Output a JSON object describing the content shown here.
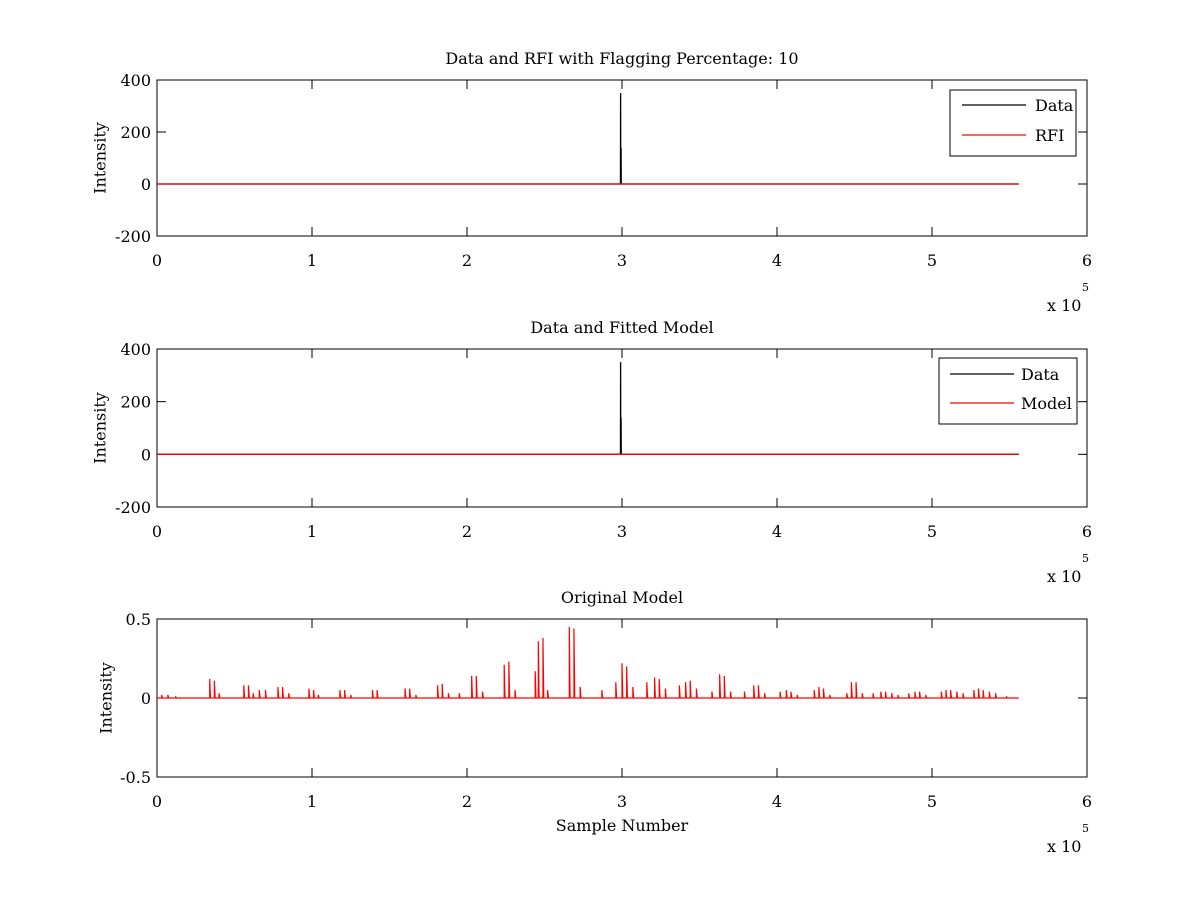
{
  "chart_data": [
    {
      "type": "line",
      "title": "Data and RFI with Flagging Percentage: 10",
      "xlabel": "",
      "ylabel": "Intensity",
      "xlim": [
        0,
        600000
      ],
      "ylim": [
        -200,
        400
      ],
      "x_ticks": [
        0,
        1,
        2,
        3,
        4,
        5,
        6
      ],
      "y_ticks": [
        -200,
        0,
        200,
        400
      ],
      "x_exponent": "x 10",
      "x_exponent_power": "5",
      "legend": "top-right",
      "series": [
        {
          "name": "Data",
          "color": "#000000",
          "x": [
            0,
            299000,
            299100,
            299200,
            299300,
            299400,
            299500,
            299600,
            556000
          ],
          "y": [
            0,
            0,
            350,
            0,
            0,
            140,
            0,
            0,
            0
          ]
        },
        {
          "name": "RFI",
          "color": "#ff0000",
          "x": [
            0,
            556000
          ],
          "y": [
            0,
            0
          ]
        }
      ]
    },
    {
      "type": "line",
      "title": "Data and Fitted Model",
      "xlabel": "",
      "ylabel": "Intensity",
      "xlim": [
        0,
        600000
      ],
      "ylim": [
        -200,
        400
      ],
      "x_ticks": [
        0,
        1,
        2,
        3,
        4,
        5,
        6
      ],
      "y_ticks": [
        -200,
        0,
        200,
        400
      ],
      "x_exponent": "x 10",
      "x_exponent_power": "5",
      "legend": "top-right",
      "series": [
        {
          "name": "Data",
          "color": "#000000",
          "x": [
            0,
            299000,
            299100,
            299200,
            299300,
            299400,
            299500,
            299600,
            556000
          ],
          "y": [
            0,
            0,
            350,
            0,
            0,
            140,
            0,
            0,
            0
          ]
        },
        {
          "name": "Model",
          "color": "#ff0000",
          "x": [
            0,
            556000
          ],
          "y": [
            0,
            0
          ]
        }
      ]
    },
    {
      "type": "line",
      "title": "Original Model",
      "xlabel": "Sample Number",
      "ylabel": "Intensity",
      "xlim": [
        0,
        600000
      ],
      "ylim": [
        -0.5,
        0.5
      ],
      "x_ticks": [
        0,
        1,
        2,
        3,
        4,
        5,
        6
      ],
      "y_ticks": [
        -0.5,
        0,
        0.5
      ],
      "x_exponent": "x 10",
      "x_exponent_power": "5",
      "legend": "none",
      "series": [
        {
          "color": "#ff0000",
          "x_end": 556000,
          "spikes": [
            [
              3000,
              0.02
            ],
            [
              7000,
              0.02
            ],
            [
              12000,
              0.01
            ],
            [
              34000,
              0.12
            ],
            [
              37000,
              0.11
            ],
            [
              40000,
              0.03
            ],
            [
              56000,
              0.08
            ],
            [
              59000,
              0.08
            ],
            [
              62000,
              0.03
            ],
            [
              66000,
              0.05
            ],
            [
              70000,
              0.05
            ],
            [
              78000,
              0.07
            ],
            [
              81000,
              0.07
            ],
            [
              85000,
              0.03
            ],
            [
              98000,
              0.06
            ],
            [
              101000,
              0.05
            ],
            [
              104000,
              0.02
            ],
            [
              118000,
              0.05
            ],
            [
              121000,
              0.05
            ],
            [
              125000,
              0.02
            ],
            [
              139000,
              0.05
            ],
            [
              142000,
              0.05
            ],
            [
              160000,
              0.06
            ],
            [
              163000,
              0.06
            ],
            [
              167000,
              0.02
            ],
            [
              181000,
              0.08
            ],
            [
              184000,
              0.09
            ],
            [
              188000,
              0.03
            ],
            [
              195000,
              0.03
            ],
            [
              203000,
              0.14
            ],
            [
              206000,
              0.14
            ],
            [
              210000,
              0.04
            ],
            [
              224000,
              0.21
            ],
            [
              227000,
              0.23
            ],
            [
              231000,
              0.05
            ],
            [
              244000,
              0.17
            ],
            [
              246000,
              0.36
            ],
            [
              249000,
              0.38
            ],
            [
              252000,
              0.05
            ],
            [
              266000,
              0.45
            ],
            [
              269000,
              0.44
            ],
            [
              273000,
              0.07
            ],
            [
              287000,
              0.05
            ],
            [
              296000,
              0.1
            ],
            [
              300000,
              0.22
            ],
            [
              303000,
              0.2
            ],
            [
              307000,
              0.07
            ],
            [
              316000,
              0.1
            ],
            [
              321000,
              0.13
            ],
            [
              324000,
              0.12
            ],
            [
              328000,
              0.06
            ],
            [
              337000,
              0.08
            ],
            [
              341000,
              0.1
            ],
            [
              344000,
              0.11
            ],
            [
              348000,
              0.06
            ],
            [
              358000,
              0.04
            ],
            [
              363000,
              0.15
            ],
            [
              366000,
              0.14
            ],
            [
              370000,
              0.04
            ],
            [
              379000,
              0.04
            ],
            [
              385000,
              0.08
            ],
            [
              388000,
              0.08
            ],
            [
              392000,
              0.03
            ],
            [
              402000,
              0.04
            ],
            [
              406000,
              0.05
            ],
            [
              409000,
              0.04
            ],
            [
              413000,
              0.02
            ],
            [
              424000,
              0.05
            ],
            [
              427000,
              0.07
            ],
            [
              430000,
              0.06
            ],
            [
              434000,
              0.02
            ],
            [
              445000,
              0.03
            ],
            [
              448000,
              0.1
            ],
            [
              451000,
              0.1
            ],
            [
              455000,
              0.03
            ],
            [
              462000,
              0.03
            ],
            [
              467000,
              0.04
            ],
            [
              470000,
              0.04
            ],
            [
              474000,
              0.03
            ],
            [
              478000,
              0.02
            ],
            [
              485000,
              0.03
            ],
            [
              489000,
              0.04
            ],
            [
              492000,
              0.04
            ],
            [
              496000,
              0.02
            ],
            [
              506000,
              0.04
            ],
            [
              509000,
              0.05
            ],
            [
              512000,
              0.05
            ],
            [
              516000,
              0.04
            ],
            [
              520000,
              0.03
            ],
            [
              527000,
              0.05
            ],
            [
              530000,
              0.06
            ],
            [
              533000,
              0.05
            ],
            [
              537000,
              0.04
            ],
            [
              541000,
              0.03
            ],
            [
              548000,
              0.01
            ]
          ]
        }
      ]
    }
  ]
}
